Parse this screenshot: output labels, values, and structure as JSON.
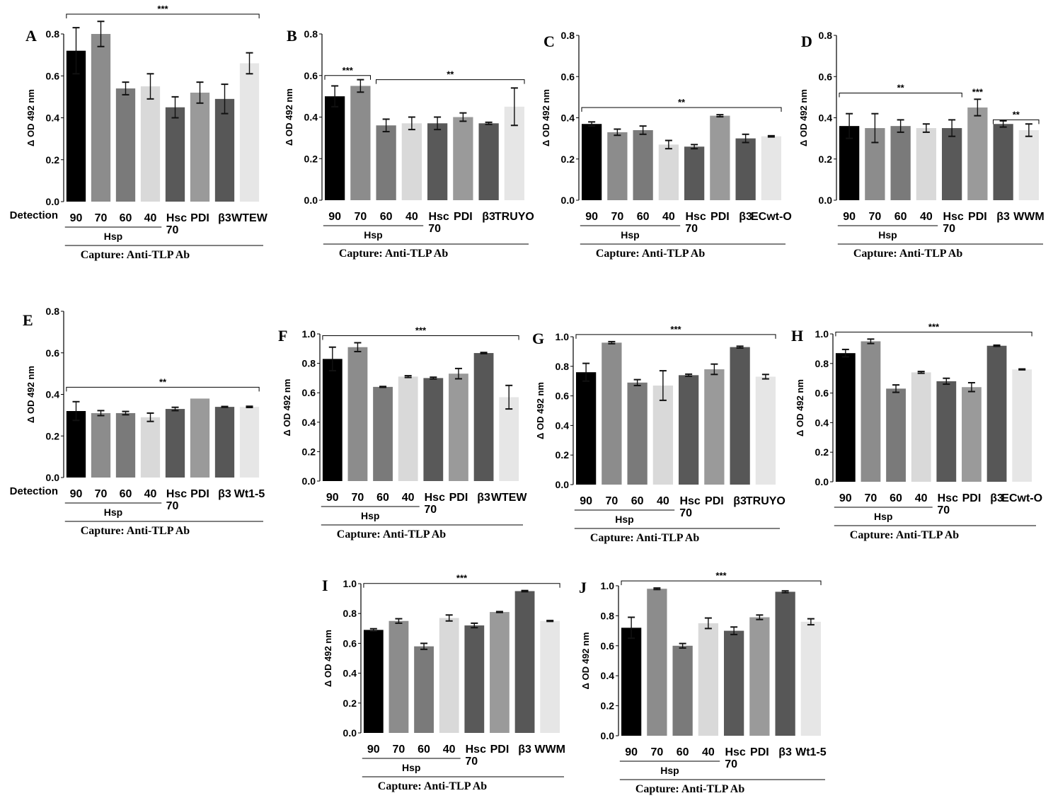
{
  "figure": {
    "ylabel": "Δ OD 492 nm",
    "detection_label": "Detection",
    "group_label": "Hsp",
    "capture_label": "Capture: Anti-TLP  Ab",
    "colors": [
      "#000000",
      "#8c8c8c",
      "#7a7a7a",
      "#d9d9d9",
      "#595959",
      "#9a9a9a",
      "#575757",
      "#e6e6e6"
    ]
  },
  "chart_data": [
    {
      "panel": "A",
      "type": "bar",
      "ylim": [
        0.0,
        0.8
      ],
      "yticks": [
        "0.0",
        "0.2",
        "0.4",
        "0.6",
        "0.8"
      ],
      "categories": [
        "90",
        "70",
        "60",
        "40",
        "Hsc 70",
        "PDI",
        "β3",
        "WTEW"
      ],
      "values": [
        0.72,
        0.8,
        0.54,
        0.55,
        0.45,
        0.52,
        0.49,
        0.66
      ],
      "errors": [
        0.11,
        0.06,
        0.03,
        0.06,
        0.05,
        0.05,
        0.07,
        0.05
      ],
      "detection": true,
      "brackets": [
        {
          "from": 0,
          "to": 7,
          "label": "***"
        }
      ]
    },
    {
      "panel": "B",
      "type": "bar",
      "ylim": [
        0.0,
        0.8
      ],
      "yticks": [
        "0.0",
        "0.2",
        "0.4",
        "0.6",
        "0.8"
      ],
      "categories": [
        "90",
        "70",
        "60",
        "40",
        "Hsc 70",
        "PDI",
        "β3",
        "TRUYO"
      ],
      "values": [
        0.5,
        0.55,
        0.36,
        0.37,
        0.37,
        0.4,
        0.37,
        0.45
      ],
      "errors": [
        0.05,
        0.03,
        0.03,
        0.03,
        0.03,
        0.02,
        0.005,
        0.09
      ],
      "detection": false,
      "brackets": [
        {
          "from": 0,
          "to": 1,
          "label": "***"
        },
        {
          "from": 2,
          "to": 7,
          "label": "**"
        }
      ]
    },
    {
      "panel": "C",
      "type": "bar",
      "ylim": [
        0.0,
        0.8
      ],
      "yticks": [
        "0.0",
        "0.2",
        "0.4",
        "0.6",
        "0.8"
      ],
      "categories": [
        "90",
        "70",
        "60",
        "40",
        "Hsc 70",
        "PDI",
        "β3",
        "ECwt-O"
      ],
      "values": [
        0.37,
        0.33,
        0.34,
        0.27,
        0.26,
        0.41,
        0.3,
        0.31
      ],
      "errors": [
        0.01,
        0.015,
        0.02,
        0.02,
        0.01,
        0.005,
        0.02,
        0.003
      ],
      "detection": false,
      "brackets": [
        {
          "from": 0,
          "to": 7,
          "label": "**"
        }
      ]
    },
    {
      "panel": "D",
      "type": "bar",
      "ylim": [
        0.0,
        0.8
      ],
      "yticks": [
        "0.0",
        "0.2",
        "0.4",
        "0.6",
        "0.8"
      ],
      "categories": [
        "90",
        "70",
        "60",
        "40",
        "Hsc 70",
        "PDI",
        "β3",
        "WWM"
      ],
      "values": [
        0.36,
        0.35,
        0.36,
        0.35,
        0.35,
        0.45,
        0.37,
        0.34
      ],
      "errors": [
        0.06,
        0.07,
        0.03,
        0.02,
        0.04,
        0.04,
        0.015,
        0.03
      ],
      "detection": false,
      "brackets": [
        {
          "from": 0,
          "to": 4,
          "label": "**"
        },
        {
          "from": 6,
          "to": 7,
          "label": "**"
        }
      ],
      "bar_labels": [
        {
          "index": 5,
          "label": "***"
        }
      ]
    },
    {
      "panel": "E",
      "type": "bar",
      "ylim": [
        0.0,
        0.8
      ],
      "yticks": [
        "0.0",
        "0.2",
        "0.4",
        "0.6",
        "0.8"
      ],
      "categories": [
        "90",
        "70",
        "60",
        "40",
        "Hsc 70",
        "PDI",
        "β3",
        "Wt1-5"
      ],
      "values": [
        0.32,
        0.31,
        0.31,
        0.29,
        0.33,
        0.38,
        0.34,
        0.34
      ],
      "errors": [
        0.045,
        0.012,
        0.008,
        0.02,
        0.008,
        0.0,
        0.002,
        0.003
      ],
      "detection": true,
      "brackets": [
        {
          "from": 0,
          "to": 7,
          "label": "**"
        }
      ]
    },
    {
      "panel": "F",
      "type": "bar",
      "ylim": [
        0.0,
        1.0
      ],
      "yticks": [
        "0.0",
        "0.2",
        "0.4",
        "0.6",
        "0.8",
        "1.0"
      ],
      "categories": [
        "90",
        "70",
        "60",
        "40",
        "Hsc 70",
        "PDI",
        "β3",
        "WTEW"
      ],
      "values": [
        0.83,
        0.91,
        0.64,
        0.71,
        0.7,
        0.73,
        0.87,
        0.57
      ],
      "errors": [
        0.08,
        0.03,
        0.003,
        0.006,
        0.006,
        0.035,
        0.004,
        0.08
      ],
      "detection": false,
      "brackets": [
        {
          "from": 0,
          "to": 7,
          "label": "***"
        }
      ]
    },
    {
      "panel": "G",
      "type": "bar",
      "ylim": [
        0.0,
        1.0
      ],
      "yticks": [
        "0.0",
        "0.2",
        "0.4",
        "0.6",
        "0.8",
        "1.0"
      ],
      "categories": [
        "90",
        "70",
        "60",
        "40",
        "Hsc 70",
        "PDI",
        "β3",
        "TRUYO"
      ],
      "values": [
        0.76,
        0.96,
        0.69,
        0.67,
        0.74,
        0.78,
        0.93,
        0.73
      ],
      "errors": [
        0.06,
        0.007,
        0.02,
        0.1,
        0.007,
        0.035,
        0.006,
        0.015
      ],
      "detection": false,
      "brackets": [
        {
          "from": 0,
          "to": 7,
          "label": "***"
        }
      ]
    },
    {
      "panel": "H",
      "type": "bar",
      "ylim": [
        0.0,
        1.0
      ],
      "yticks": [
        "0.0",
        "0.2",
        "0.4",
        "0.6",
        "0.8",
        "1.0"
      ],
      "categories": [
        "90",
        "70",
        "60",
        "40",
        "Hsc 70",
        "PDI",
        "β3",
        "ECwt-O"
      ],
      "values": [
        0.87,
        0.95,
        0.63,
        0.74,
        0.68,
        0.64,
        0.92,
        0.76
      ],
      "errors": [
        0.025,
        0.015,
        0.025,
        0.006,
        0.02,
        0.03,
        0.004,
        0.003
      ],
      "detection": false,
      "brackets": [
        {
          "from": 0,
          "to": 7,
          "label": "***"
        }
      ]
    },
    {
      "panel": "I",
      "type": "bar",
      "ylim": [
        0.0,
        1.0
      ],
      "yticks": [
        "0.0",
        "0.2",
        "0.4",
        "0.6",
        "0.8",
        "1.0"
      ],
      "categories": [
        "90",
        "70",
        "60",
        "40",
        "Hsc 70",
        "PDI",
        "β3",
        "WWM"
      ],
      "values": [
        0.69,
        0.75,
        0.58,
        0.77,
        0.72,
        0.81,
        0.95,
        0.75
      ],
      "errors": [
        0.008,
        0.015,
        0.02,
        0.02,
        0.015,
        0.003,
        0.004,
        0.003
      ],
      "detection": false,
      "brackets": [
        {
          "from": 0,
          "to": 7,
          "label": "***"
        }
      ]
    },
    {
      "panel": "J",
      "type": "bar",
      "ylim": [
        0.0,
        1.0
      ],
      "yticks": [
        "0.0",
        "0.2",
        "0.4",
        "0.6",
        "0.8",
        "1.0"
      ],
      "categories": [
        "90",
        "70",
        "60",
        "40",
        "Hsc 70",
        "PDI",
        "β3",
        "Wt1-5"
      ],
      "values": [
        0.72,
        0.98,
        0.6,
        0.75,
        0.7,
        0.79,
        0.96,
        0.76
      ],
      "errors": [
        0.07,
        0.005,
        0.015,
        0.035,
        0.025,
        0.015,
        0.006,
        0.02
      ],
      "detection": false,
      "brackets": [
        {
          "from": 0,
          "to": 7,
          "label": "***"
        }
      ]
    }
  ]
}
